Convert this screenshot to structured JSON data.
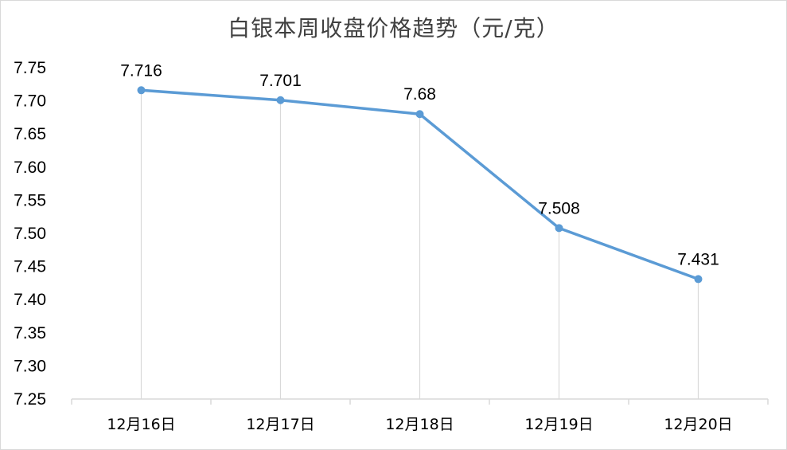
{
  "chart_data": {
    "type": "line",
    "title": "白银本周收盘价格趋势（元/克）",
    "categories": [
      "12月16日",
      "12月17日",
      "12月18日",
      "12月19日",
      "12月20日"
    ],
    "series": [
      {
        "values": [
          7.716,
          7.701,
          7.68,
          7.508,
          7.431
        ],
        "color": "#5b9bd5"
      }
    ],
    "data_labels": [
      "7.716",
      "7.701",
      "7.68",
      "7.508",
      "7.431"
    ],
    "ylim": [
      7.25,
      7.75
    ],
    "yticks": [
      "7.25",
      "7.30",
      "7.35",
      "7.40",
      "7.45",
      "7.50",
      "7.55",
      "7.60",
      "7.65",
      "7.70",
      "7.75"
    ],
    "drop_lines": true,
    "grid": false,
    "legend": "none"
  }
}
